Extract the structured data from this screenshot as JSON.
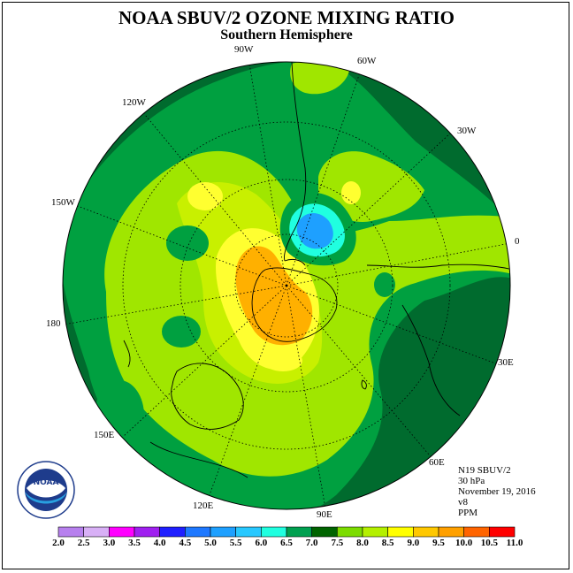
{
  "title": "NOAA SBUV/2 OZONE MIXING RATIO",
  "subtitle": "Southern Hemisphere",
  "longitude_labels": [
    {
      "text": "90W",
      "id": "lon-label-90w"
    },
    {
      "text": "60W",
      "id": "lon-label-60w"
    },
    {
      "text": "120W",
      "id": "lon-label-120w"
    },
    {
      "text": "30W",
      "id": "lon-label-30w"
    },
    {
      "text": "150W",
      "id": "lon-label-150w"
    },
    {
      "text": "0",
      "id": "lon-label-0"
    },
    {
      "text": "180",
      "id": "lon-label-180"
    },
    {
      "text": "30E",
      "id": "lon-label-30e"
    },
    {
      "text": "150E",
      "id": "lon-label-150e"
    },
    {
      "text": "60E",
      "id": "lon-label-60e"
    },
    {
      "text": "120E",
      "id": "lon-label-120e"
    },
    {
      "text": "90E",
      "id": "lon-label-90e"
    }
  ],
  "info": {
    "satellite": "N19 SBUV/2",
    "level": "30 hPa",
    "date": "November 19, 2016",
    "version": "v8",
    "units": "PPM"
  },
  "logo": {
    "text": "NOAA",
    "ring_text": "NATIONAL OCEANIC AND ATMOSPHERIC ADMINISTRATION · U.S. DEPARTMENT OF COMMERCE"
  },
  "colorbar": {
    "labels": [
      "2.0",
      "2.5",
      "3.0",
      "3.5",
      "4.0",
      "4.5",
      "5.0",
      "5.5",
      "6.0",
      "6.5",
      "7.0",
      "7.5",
      "8.0",
      "8.5",
      "9.0",
      "9.5",
      "10.0",
      "10.5",
      "11.0"
    ],
    "colors": [
      "#b780ee",
      "#d8b0f6",
      "#ff00ff",
      "#a020f0",
      "#1f1fff",
      "#1e78ff",
      "#1ea0ff",
      "#28c8ff",
      "#20ffe0",
      "#00a050",
      "#006400",
      "#7cdc00",
      "#b4f000",
      "#ffff00",
      "#ffc800",
      "#ffa000",
      "#ff6400",
      "#ff0000",
      "#8b5a2b"
    ]
  },
  "map_colors": {
    "dark_green": "#006b2e",
    "green": "#00a040",
    "lime": "#a0e600",
    "yellow_green": "#c8f000",
    "yellow": "#ffff30",
    "orange": "#ffb000",
    "cyan": "#20ffe0",
    "blue": "#1ea0ff"
  }
}
